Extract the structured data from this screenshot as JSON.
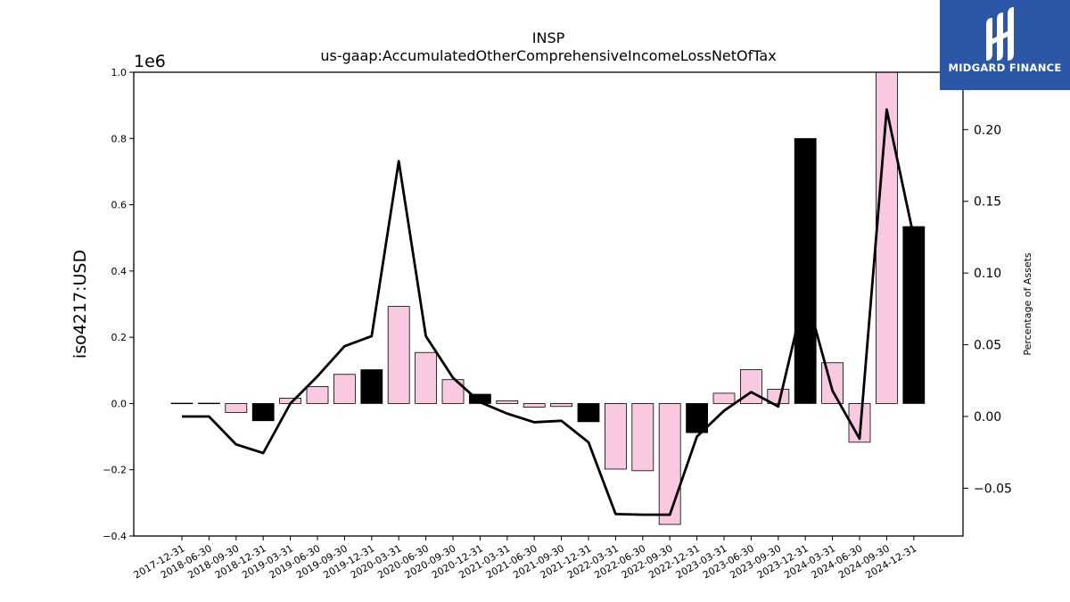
{
  "chart_data": {
    "type": "bar+line",
    "title": "INSP",
    "subtitle": "us-gaap:AccumulatedOtherComprehensiveIncomeLossNetOfTax",
    "ylabel": "iso4217:USD",
    "y_multiplier": "1e6",
    "y2label": "Percentage of Assets",
    "ylim": [
      -0.4,
      1.0
    ],
    "y2lim": [
      -0.08333,
      0.24
    ],
    "yticks": [
      "−0.4",
      "−0.2",
      "0.0",
      "0.2",
      "0.4",
      "0.6",
      "0.8",
      "1.0"
    ],
    "y2ticks": [
      "−0.05",
      "0.00",
      "0.05",
      "0.10",
      "0.15",
      "0.20"
    ],
    "categories": [
      "2017-12-31",
      "2018-06-30",
      "2018-09-30",
      "2018-12-31",
      "2019-03-31",
      "2019-06-30",
      "2019-09-30",
      "2019-12-31",
      "2020-03-31",
      "2020-06-30",
      "2020-09-30",
      "2020-12-31",
      "2021-03-31",
      "2021-06-30",
      "2021-09-30",
      "2021-12-31",
      "2022-03-31",
      "2022-06-30",
      "2022-09-30",
      "2022-12-31",
      "2023-03-31",
      "2023-06-30",
      "2023-09-30",
      "2023-12-31",
      "2024-03-31",
      "2024-06-30",
      "2024-09-30",
      "2024-12-31"
    ],
    "bar_values": [
      0.001,
      0.001,
      -0.027,
      -0.052,
      0.016,
      0.051,
      0.088,
      0.102,
      0.293,
      0.154,
      0.072,
      0.028,
      0.008,
      -0.011,
      -0.009,
      -0.055,
      -0.198,
      -0.203,
      -0.365,
      -0.088,
      0.031,
      0.102,
      0.043,
      0.8,
      0.123,
      -0.117,
      1.0,
      0.534
    ],
    "bar_kind": [
      "quarter",
      "quarter",
      "quarter",
      "year-end",
      "quarter",
      "quarter",
      "quarter",
      "year-end",
      "quarter",
      "quarter",
      "quarter",
      "year-end",
      "quarter",
      "quarter",
      "quarter",
      "year-end",
      "quarter",
      "quarter",
      "quarter",
      "year-end",
      "quarter",
      "quarter",
      "quarter",
      "year-end",
      "quarter",
      "quarter",
      "quarter",
      "year-end"
    ],
    "line_values": [
      0.0,
      0.0,
      -0.0195,
      -0.0255,
      0.009,
      0.028,
      0.049,
      0.056,
      0.178,
      0.056,
      0.027,
      0.01,
      0.002,
      -0.004,
      -0.003,
      -0.018,
      -0.068,
      -0.0685,
      -0.0685,
      -0.014,
      0.004,
      0.017,
      0.007,
      0.087,
      0.018,
      -0.0155,
      0.214,
      0.125
    ],
    "colors": {
      "quarter": "#f9c8e1",
      "year-end": "#000000",
      "line": "#000000",
      "axis": "#000000"
    },
    "grid": false,
    "legend": "none"
  },
  "logo": {
    "text": "MIDGARD FINANCE",
    "icon": "midgard-logo-icon",
    "background": "#2b57a6"
  }
}
